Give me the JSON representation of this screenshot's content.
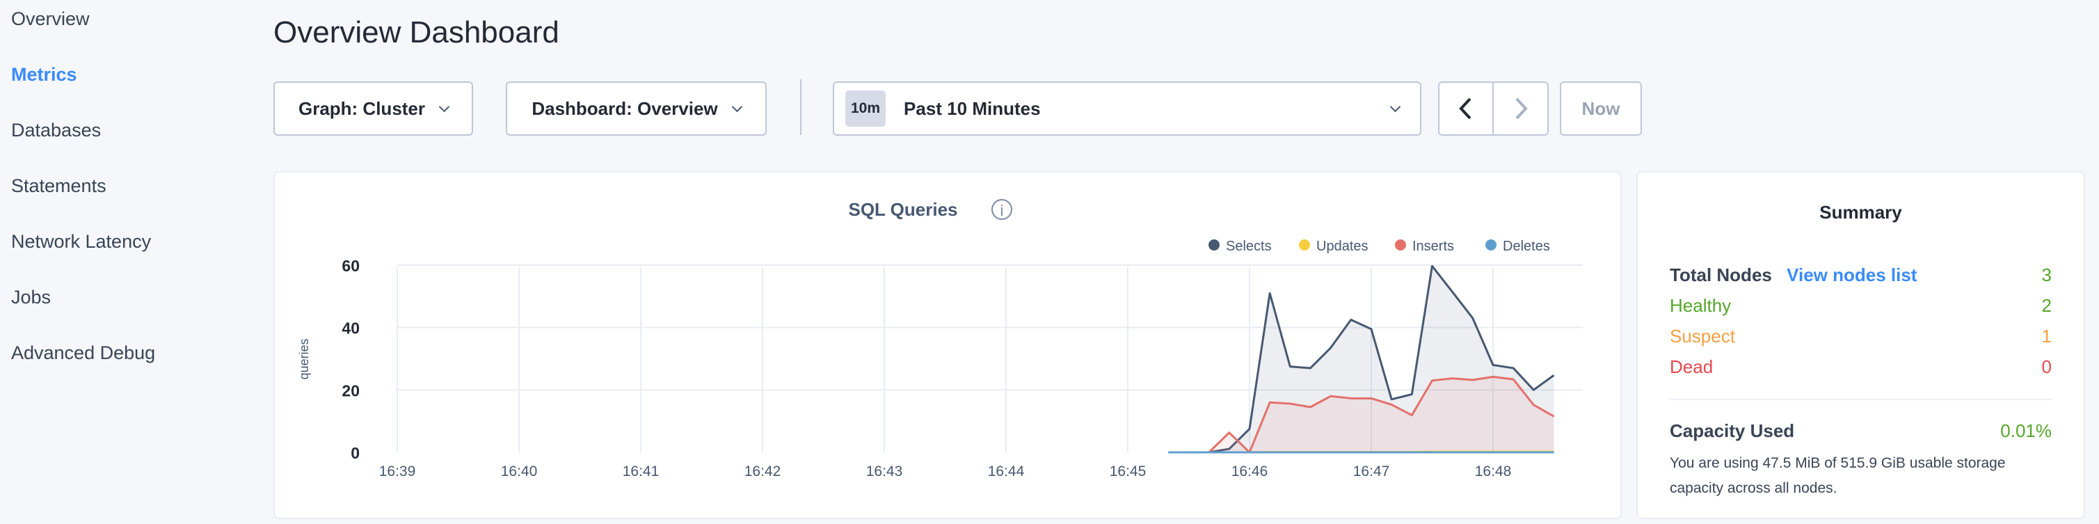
{
  "sidebar": {
    "items": [
      {
        "label": "Overview",
        "active": false
      },
      {
        "label": "Metrics",
        "active": true
      },
      {
        "label": "Databases",
        "active": false
      },
      {
        "label": "Statements",
        "active": false
      },
      {
        "label": "Network Latency",
        "active": false
      },
      {
        "label": "Jobs",
        "active": false
      },
      {
        "label": "Advanced Debug",
        "active": false
      }
    ]
  },
  "header": {
    "title": "Overview Dashboard"
  },
  "toolbar": {
    "graph_select": "Graph: Cluster",
    "dashboard_select": "Dashboard: Overview",
    "time_badge": "10m",
    "time_range": "Past 10 Minutes",
    "now_label": "Now"
  },
  "chart_data": {
    "type": "area",
    "title": "SQL Queries",
    "ylabel": "queries",
    "xlabel": "",
    "ylim": [
      0,
      60
    ],
    "yticks": [
      0,
      20,
      40,
      60
    ],
    "xticks": [
      "16:39",
      "16:40",
      "16:41",
      "16:42",
      "16:43",
      "16:44",
      "16:45",
      "16:46",
      "16:47",
      "16:48"
    ],
    "x": [
      "16:45:20",
      "16:45:30",
      "16:45:40",
      "16:45:50",
      "16:46:00",
      "16:46:10",
      "16:46:20",
      "16:46:30",
      "16:46:40",
      "16:46:50",
      "16:47:00",
      "16:47:10",
      "16:47:20",
      "16:47:30",
      "16:47:40",
      "16:47:50",
      "16:48:00",
      "16:48:10",
      "16:48:20",
      "16:48:30"
    ],
    "legend_position": "top-right",
    "grid": true,
    "series": [
      {
        "name": "Selects",
        "color": "#475872",
        "values": [
          0,
          0,
          0,
          1.1,
          7.5,
          51,
          27.5,
          27,
          33.5,
          42.5,
          39.5,
          17,
          18.6,
          59.7,
          51.4,
          43,
          28,
          27,
          20,
          24.7
        ]
      },
      {
        "name": "Updates",
        "color": "#f6cd3f",
        "values": [
          0,
          0,
          0,
          0,
          0,
          0.1,
          0.1,
          0.1,
          0.1,
          0.1,
          0.1,
          0.1,
          0.1,
          0.2,
          0.2,
          0.2,
          0.2,
          0.2,
          0.2,
          0.2
        ]
      },
      {
        "name": "Inserts",
        "color": "#e4706b",
        "values": [
          0,
          0,
          0,
          6.3,
          0,
          16,
          15.6,
          14.5,
          18,
          17.3,
          17.3,
          15.3,
          11.9,
          23,
          23.7,
          23.2,
          24.2,
          23.4,
          15.2,
          11.5
        ]
      },
      {
        "name": "Deletes",
        "color": "#5f9fcf",
        "values": [
          0,
          0,
          0,
          0,
          0,
          0,
          0,
          0,
          0,
          0,
          0,
          0,
          0,
          0,
          0,
          0,
          0,
          0,
          0,
          0
        ]
      }
    ]
  },
  "summary": {
    "title": "Summary",
    "total_nodes_label": "Total Nodes",
    "view_nodes_link": "View nodes list",
    "total_nodes": "3",
    "healthy_label": "Healthy",
    "healthy": "2",
    "suspect_label": "Suspect",
    "suspect": "1",
    "dead_label": "Dead",
    "dead": "0",
    "capacity_label": "Capacity Used",
    "capacity_value": "0.01%",
    "capacity_text": "You are using 47.5 MiB of 515.9 GiB usable storage capacity across all nodes.",
    "colors": {
      "healthy": "#54a628",
      "suspect": "#f5a042",
      "dead": "#e5484d",
      "link": "#3a8bfa"
    }
  }
}
